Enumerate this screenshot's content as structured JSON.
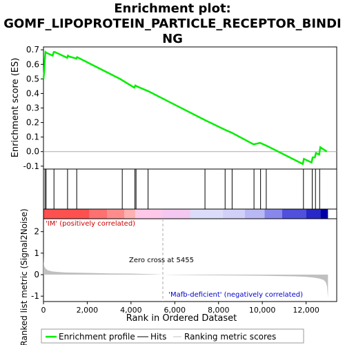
{
  "title_lines": [
    "Enrichment plot:",
    "GOMF_LIPOPROTEIN_PARTICLE_RECEPTOR_BINDI",
    "NG"
  ],
  "colors": {
    "es_line": "#00ee00",
    "hit_line": "#000000",
    "metric_fill": "#c0c0c0",
    "positive_label": "#cc0000",
    "negative_label": "#0000cc",
    "zero_cross": "#aaaaaa"
  },
  "legend": {
    "enrichment_profile": "Enrichment profile",
    "hits": "Hits",
    "ranking_metric_scores": "Ranking metric scores"
  },
  "annotations": {
    "positive": "'IM' (positively correlated)",
    "negative": "'Mafb-deficient' (negatively correlated)",
    "zero_cross": "Zero cross at 5455"
  },
  "chart_data": [
    {
      "type": "line",
      "name": "enrichment-score",
      "ylabel": "Enrichment score (ES)",
      "ylim": [
        -0.12,
        0.72
      ],
      "yticks": [
        -0.1,
        0.0,
        0.1,
        0.2,
        0.3,
        0.4,
        0.5,
        0.6,
        0.7
      ],
      "ytick_labels": [
        "-0.1",
        "0.0",
        "0.1",
        "0.2",
        "0.3",
        "0.4",
        "0.5",
        "0.6",
        "0.7"
      ],
      "xlim": [
        0,
        13400
      ],
      "x": [
        0,
        30,
        60,
        90,
        130,
        420,
        470,
        520,
        1080,
        1120,
        1160,
        1500,
        1540,
        1600,
        3500,
        4150,
        4200,
        4250,
        4800,
        7400,
        8300,
        8600,
        9600,
        9900,
        10200,
        11850,
        11900,
        12250,
        12300,
        12400,
        12450,
        12600,
        12650,
        12950
      ],
      "y": [
        0.5,
        0.55,
        0.63,
        0.685,
        0.68,
        0.66,
        0.685,
        0.685,
        0.645,
        0.66,
        0.655,
        0.64,
        0.65,
        0.645,
        0.5,
        0.44,
        0.455,
        0.45,
        0.415,
        0.215,
        0.15,
        0.13,
        0.05,
        0.06,
        0.04,
        -0.085,
        -0.05,
        -0.075,
        -0.04,
        -0.04,
        -0.01,
        -0.02,
        0.03,
        0.0
      ]
    },
    {
      "type": "hits",
      "name": "gene-set-hits",
      "x": [
        70,
        120,
        480,
        1100,
        1520,
        3600,
        4180,
        4230,
        4780,
        7380,
        8300,
        8620,
        9620,
        9920,
        10180,
        11880,
        12280,
        12430,
        12620
      ]
    },
    {
      "type": "heatmap",
      "name": "rank-color-bar",
      "segments": [
        {
          "from": 0,
          "to": 2100,
          "color": "#ff5050"
        },
        {
          "from": 2100,
          "to": 2900,
          "color": "#ff7070"
        },
        {
          "from": 2900,
          "to": 3700,
          "color": "#ff8c8c"
        },
        {
          "from": 3700,
          "to": 4200,
          "color": "#ffb0b0"
        },
        {
          "from": 4200,
          "to": 5400,
          "color": "#ffc8e8"
        },
        {
          "from": 5400,
          "to": 6700,
          "color": "#f4c8f0"
        },
        {
          "from": 6700,
          "to": 8200,
          "color": "#dcdcfa"
        },
        {
          "from": 8200,
          "to": 9200,
          "color": "#d0d0f8"
        },
        {
          "from": 9200,
          "to": 10100,
          "color": "#b8b8f4"
        },
        {
          "from": 10100,
          "to": 10900,
          "color": "#8888ec"
        },
        {
          "from": 10900,
          "to": 12000,
          "color": "#5050dc"
        },
        {
          "from": 12000,
          "to": 12650,
          "color": "#2828c8"
        },
        {
          "from": 12650,
          "to": 13000,
          "color": "#0000a8"
        }
      ]
    },
    {
      "type": "area",
      "name": "ranked-list-metric",
      "xlabel": "Rank in Ordered Dataset",
      "ylabel": "Ranked list metric (Signal2Noise)",
      "ylim": [
        -1.25,
        2.6
      ],
      "yticks": [
        -1,
        0,
        1,
        2
      ],
      "ytick_labels": [
        "-1",
        "0",
        "1",
        "2"
      ],
      "xlim": [
        0,
        13400
      ],
      "xticks": [
        0,
        2000,
        4000,
        6000,
        8000,
        10000,
        12000
      ],
      "xtick_labels": [
        "0",
        "2,000",
        "4,000",
        "6,000",
        "8,000",
        "10,000",
        "12,000"
      ],
      "zero_cross": 5455,
      "x": [
        0,
        10,
        40,
        100,
        200,
        400,
        700,
        1000,
        2000,
        3000,
        4000,
        5000,
        5455,
        6000,
        7000,
        8000,
        9000,
        10000,
        11000,
        11500,
        12000,
        12300,
        12600,
        12800,
        12900,
        12960,
        13000
      ],
      "y": [
        0.9,
        0.55,
        0.38,
        0.28,
        0.2,
        0.15,
        0.12,
        0.1,
        0.08,
        0.06,
        0.05,
        0.02,
        0.0,
        -0.01,
        -0.02,
        -0.03,
        -0.04,
        -0.05,
        -0.07,
        -0.08,
        -0.1,
        -0.13,
        -0.18,
        -0.25,
        -0.35,
        -0.55,
        -1.1
      ]
    }
  ]
}
